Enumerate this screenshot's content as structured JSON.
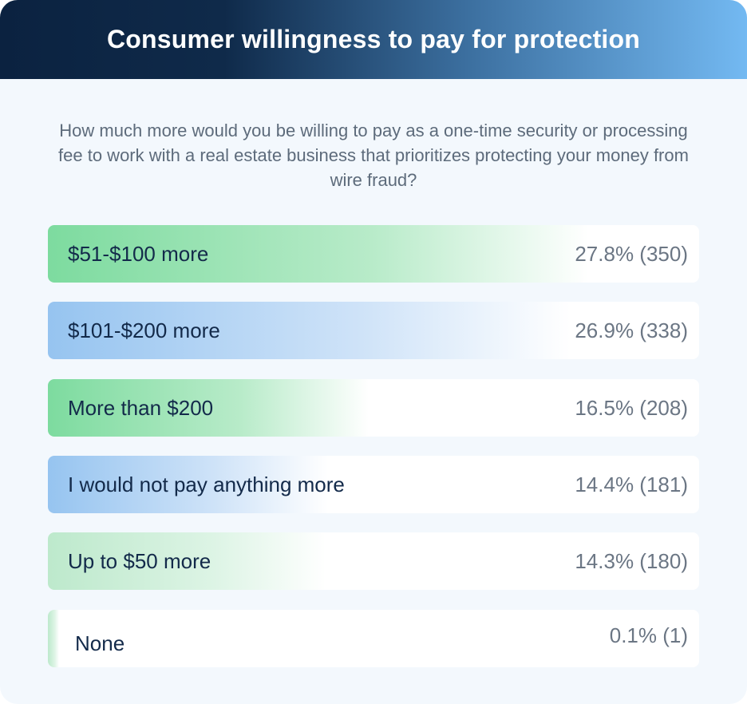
{
  "title": "Consumer willingness to pay for protection",
  "question": "How much more would you be willing to pay as a one-time security or processing fee to work with a real estate business that prioritizes protecting your money from wire fraud?",
  "colors": {
    "green": "#7ddb9f",
    "blue": "#96c4f0",
    "light_green": "#bde9cc",
    "header_dark": "#0b2240",
    "header_light": "#73b9f2"
  },
  "chart_data": {
    "type": "bar",
    "orientation": "horizontal",
    "title": "Consumer willingness to pay for protection",
    "subtitle": "How much more would you be willing to pay as a one-time security or processing fee to work with a real estate business that prioritizes protecting your money from wire fraud?",
    "categories": [
      "$51-$100 more",
      "$101-$200 more",
      "More than $200",
      "I would not pay anything more",
      "Up to $50 more",
      "None"
    ],
    "values": [
      27.8,
      26.9,
      16.5,
      14.4,
      14.3,
      0.1
    ],
    "counts": [
      350,
      338,
      208,
      181,
      180,
      1
    ],
    "value_labels": [
      "27.8% (350)",
      "26.9% (338)",
      "16.5% (208)",
      "14.4% (181)",
      "14.3% (180)",
      "0.1% (1)"
    ],
    "bar_colors": [
      "green",
      "blue",
      "green",
      "blue",
      "light_green",
      "light_green"
    ],
    "unit": "%",
    "grid": false,
    "legend": "none"
  }
}
